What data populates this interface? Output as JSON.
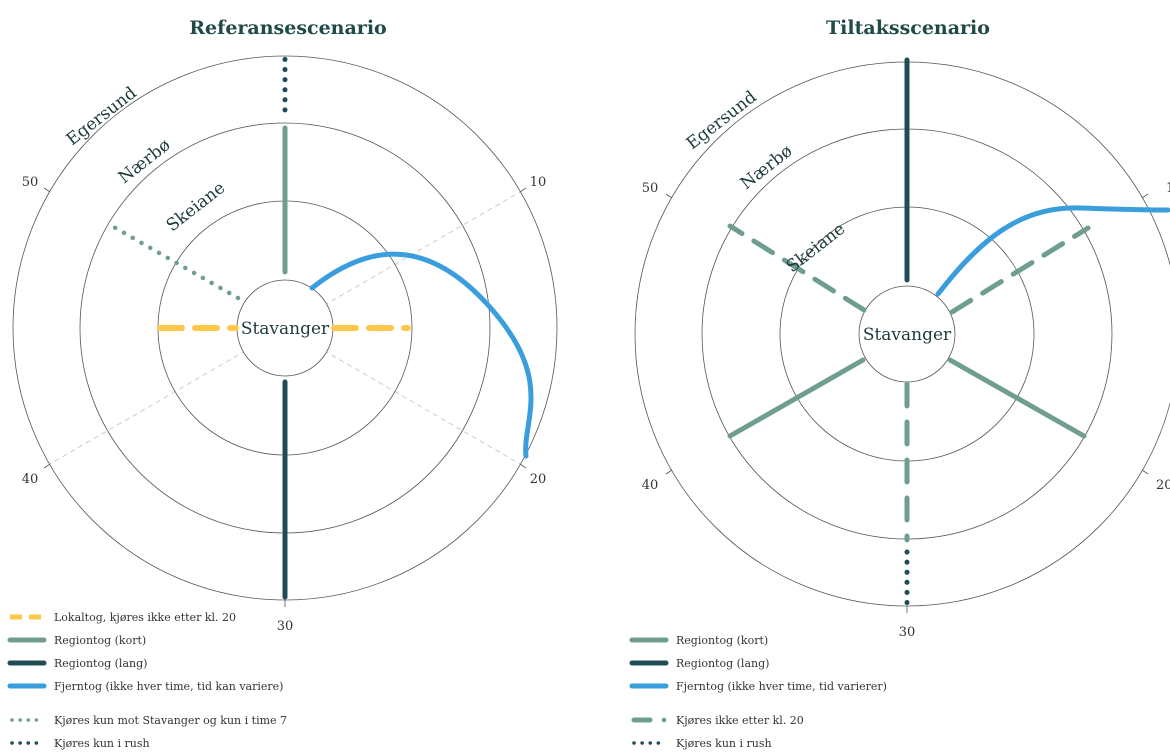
{
  "colors": {
    "lokaltog": "#ffc84a",
    "regiontog_kort": "#6f9e91",
    "regiontog_lang": "#214c57",
    "fjerntog": "#3a9ddc",
    "circle": "#555555",
    "guide": "#cccccc"
  },
  "stations": {
    "center": "Stavanger",
    "ring1": "Skeiane",
    "ring2": "Nærbø",
    "ring3": "Egersund"
  },
  "ticks": [
    "10",
    "20",
    "30",
    "40",
    "50"
  ],
  "left": {
    "title": "Referansescenario",
    "legend": [
      {
        "style": "dash-yellow",
        "label": "Lokaltog, kjøres ikke etter kl. 20"
      },
      {
        "style": "solid-kort",
        "label": "Regiontog (kort)"
      },
      {
        "style": "solid-lang",
        "label": "Regiontog (lang)"
      },
      {
        "style": "solid-fjern",
        "label": "Fjerntog (ikke hver time, tid kan variere)"
      },
      {
        "style": "dots-light",
        "label": "Kjøres kun mot Stavanger og kun i time 7"
      },
      {
        "style": "dots-dark",
        "label": "Kjøres kun i rush"
      }
    ]
  },
  "right": {
    "title": "Tiltaksscenario",
    "legend": [
      {
        "style": "solid-kort",
        "label": "Regiontog (kort)"
      },
      {
        "style": "solid-lang",
        "label": "Regiontog (lang)"
      },
      {
        "style": "solid-fjern",
        "label": "Fjerntog (ikke hver time, tid varierer)"
      },
      {
        "style": "dash-kort",
        "label": "Kjøres ikke etter kl. 20"
      },
      {
        "style": "dots-dark",
        "label": "Kjøres kun i rush"
      }
    ]
  }
}
